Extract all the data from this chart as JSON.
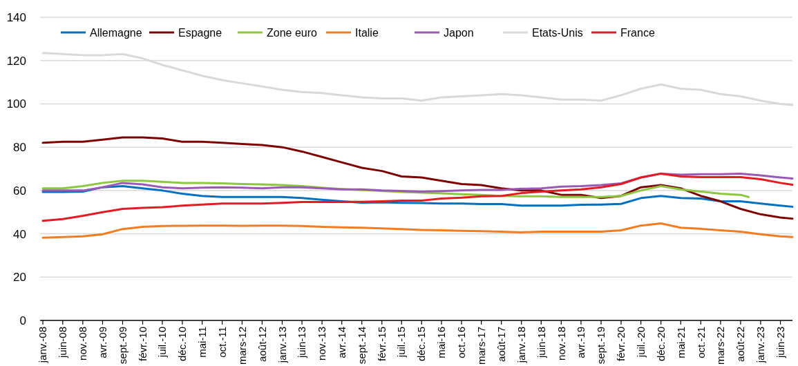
{
  "chart_data": {
    "type": "line",
    "x": [
      "2008-01",
      "2008-06",
      "2008-11",
      "2009-04",
      "2009-09",
      "2010-02",
      "2010-07",
      "2010-12",
      "2011-05",
      "2011-10",
      "2012-03",
      "2012-08",
      "2013-01",
      "2013-06",
      "2013-11",
      "2014-04",
      "2014-09",
      "2015-02",
      "2015-07",
      "2015-12",
      "2016-05",
      "2016-10",
      "2017-03",
      "2017-08",
      "2018-01",
      "2018-06",
      "2018-11",
      "2019-04",
      "2019-09",
      "2020-02",
      "2020-07",
      "2020-12",
      "2021-05",
      "2021-10",
      "2022-03",
      "2022-08",
      "2023-01",
      "2023-06",
      "2023-09"
    ],
    "xlim": [
      "2008-01",
      "2023-09"
    ],
    "xticks": [
      {
        "value": "2008-01",
        "label": "janv.-08"
      },
      {
        "value": "2008-06",
        "label": "juin-08"
      },
      {
        "value": "2008-11",
        "label": "nov.-08"
      },
      {
        "value": "2009-04",
        "label": "avr.-09"
      },
      {
        "value": "2009-09",
        "label": "sept.-09"
      },
      {
        "value": "2010-02",
        "label": "févr.-10"
      },
      {
        "value": "2010-07",
        "label": "juil.-10"
      },
      {
        "value": "2010-12",
        "label": "déc.-10"
      },
      {
        "value": "2011-05",
        "label": "mai-11"
      },
      {
        "value": "2011-10",
        "label": "oct.-11"
      },
      {
        "value": "2012-03",
        "label": "mars-12"
      },
      {
        "value": "2012-08",
        "label": "août-12"
      },
      {
        "value": "2013-01",
        "label": "janv.-13"
      },
      {
        "value": "2013-06",
        "label": "juin-13"
      },
      {
        "value": "2013-11",
        "label": "nov.-13"
      },
      {
        "value": "2014-04",
        "label": "avr.-14"
      },
      {
        "value": "2014-09",
        "label": "sept.-14"
      },
      {
        "value": "2015-02",
        "label": "févr.-15"
      },
      {
        "value": "2015-07",
        "label": "juil.-15"
      },
      {
        "value": "2015-12",
        "label": "déc.-15"
      },
      {
        "value": "2016-05",
        "label": "mai-16"
      },
      {
        "value": "2016-10",
        "label": "oct.-16"
      },
      {
        "value": "2017-03",
        "label": "mars-17"
      },
      {
        "value": "2017-08",
        "label": "août-17"
      },
      {
        "value": "2018-01",
        "label": "janv.-18"
      },
      {
        "value": "2018-06",
        "label": "juin-18"
      },
      {
        "value": "2018-11",
        "label": "nov.-18"
      },
      {
        "value": "2019-04",
        "label": "avr.-19"
      },
      {
        "value": "2019-09",
        "label": "sept.-19"
      },
      {
        "value": "2020-02",
        "label": "févr.-20"
      },
      {
        "value": "2020-07",
        "label": "juil.-20"
      },
      {
        "value": "2020-12",
        "label": "déc.-20"
      },
      {
        "value": "2021-05",
        "label": "mai-21"
      },
      {
        "value": "2021-10",
        "label": "oct.-21"
      },
      {
        "value": "2022-03",
        "label": "mars-22"
      },
      {
        "value": "2022-08",
        "label": "août-22"
      },
      {
        "value": "2023-01",
        "label": "janv.-23"
      },
      {
        "value": "2023-06",
        "label": "juin-23"
      }
    ],
    "ylim": [
      0,
      140
    ],
    "yticks": [
      0,
      20,
      40,
      60,
      80,
      100,
      120,
      140
    ],
    "grid": "y",
    "legend": "top",
    "series": [
      {
        "name": "Allemagne",
        "color": "#0070c0",
        "values": [
          59.3,
          59.3,
          59.5,
          61.5,
          62,
          61,
          60,
          58.5,
          57.5,
          57,
          57,
          57,
          57,
          56.5,
          55.7,
          55,
          54.4,
          54.5,
          54.3,
          54.2,
          54,
          54,
          53.7,
          53.7,
          53,
          53,
          53,
          53.4,
          53.5,
          53.8,
          56.5,
          57.5,
          56.5,
          56.3,
          55,
          55,
          54,
          53,
          52.5
        ]
      },
      {
        "name": "Espagne",
        "color": "#7f0000",
        "values": [
          82,
          82.5,
          82.5,
          83.5,
          84.5,
          84.5,
          84,
          82.5,
          82.5,
          82,
          81.5,
          81,
          80,
          78,
          75.5,
          73,
          70.5,
          69,
          66.5,
          66,
          64.5,
          63,
          62.5,
          61,
          60,
          60,
          58,
          58,
          56.5,
          57.5,
          61.5,
          62.5,
          61,
          57.5,
          55,
          51.5,
          49,
          47.5,
          47
        ]
      },
      {
        "name": "Zone euro",
        "color": "#8dc63f",
        "x": [
          "2008-01",
          "2008-06",
          "2008-11",
          "2009-04",
          "2009-09",
          "2010-02",
          "2010-07",
          "2010-12",
          "2011-05",
          "2011-10",
          "2012-03",
          "2012-08",
          "2013-01",
          "2013-06",
          "2013-11",
          "2014-04",
          "2014-09",
          "2015-02",
          "2015-07",
          "2015-12",
          "2016-05",
          "2016-10",
          "2017-03",
          "2017-08",
          "2018-01",
          "2018-06",
          "2018-11",
          "2019-04",
          "2019-09",
          "2020-02",
          "2020-07",
          "2020-12",
          "2021-05",
          "2021-10",
          "2022-03",
          "2022-08",
          "2022-10"
        ],
        "values": [
          61,
          61,
          62,
          63.5,
          64.5,
          64.5,
          64,
          63.5,
          63.5,
          63.3,
          63,
          62.8,
          62.5,
          62,
          61.3,
          60.7,
          60.2,
          59.8,
          59.3,
          59,
          58.7,
          58.3,
          58,
          57.5,
          57.3,
          57.3,
          57,
          57,
          57,
          57.5,
          60,
          62,
          60.5,
          59.5,
          58.5,
          58,
          57
        ]
      },
      {
        "name": "Italie",
        "color": "#f47c20",
        "values": [
          38.2,
          38.5,
          38.8,
          39.8,
          42.2,
          43.2,
          43.6,
          43.7,
          43.8,
          43.8,
          43.7,
          43.8,
          43.8,
          43.6,
          43.2,
          43,
          42.8,
          42.5,
          42.2,
          41.8,
          41.6,
          41.4,
          41.2,
          41,
          40.7,
          41,
          41,
          41,
          41,
          41.6,
          43.8,
          44.8,
          42.8,
          42.3,
          41.6,
          41,
          39.8,
          38.8,
          38.5
        ]
      },
      {
        "name": "Japon",
        "color": "#9b59b6",
        "values": [
          60,
          60,
          60,
          61.5,
          63.5,
          62.8,
          61.5,
          61,
          61.3,
          61.5,
          61.3,
          61,
          61.5,
          61.5,
          61,
          60.5,
          60.5,
          60,
          59.8,
          59.5,
          59.7,
          60,
          60.3,
          60.3,
          60.8,
          61,
          61.8,
          62,
          62.5,
          63.3,
          66,
          67.8,
          67.3,
          67.5,
          67.5,
          67.8,
          67,
          66,
          65.5
        ]
      },
      {
        "name": "Etats-Unis",
        "color": "#d9d9d9",
        "values": [
          123.5,
          123,
          122.5,
          122.5,
          123,
          121,
          118,
          115.5,
          113,
          111,
          109.5,
          108,
          106.5,
          105.5,
          105,
          104,
          103,
          102.5,
          102.5,
          101.5,
          103,
          103.5,
          104,
          104.5,
          104,
          103,
          102,
          102,
          101.5,
          104,
          107,
          109,
          107,
          106.5,
          104.5,
          103.5,
          101.5,
          100,
          99.5
        ]
      },
      {
        "name": "France",
        "color": "#e31b23",
        "values": [
          46,
          46.8,
          48.3,
          50,
          51.5,
          52,
          52.3,
          53,
          53.5,
          54,
          54,
          54,
          54.3,
          54.7,
          54.7,
          54.7,
          54.8,
          55,
          55.3,
          55.3,
          56.3,
          56.7,
          57.3,
          57.5,
          58.8,
          59.5,
          60,
          60.5,
          61.5,
          63,
          66,
          67.8,
          66.5,
          66.2,
          66.2,
          66.2,
          65.2,
          63.5,
          62.7
        ]
      }
    ]
  }
}
